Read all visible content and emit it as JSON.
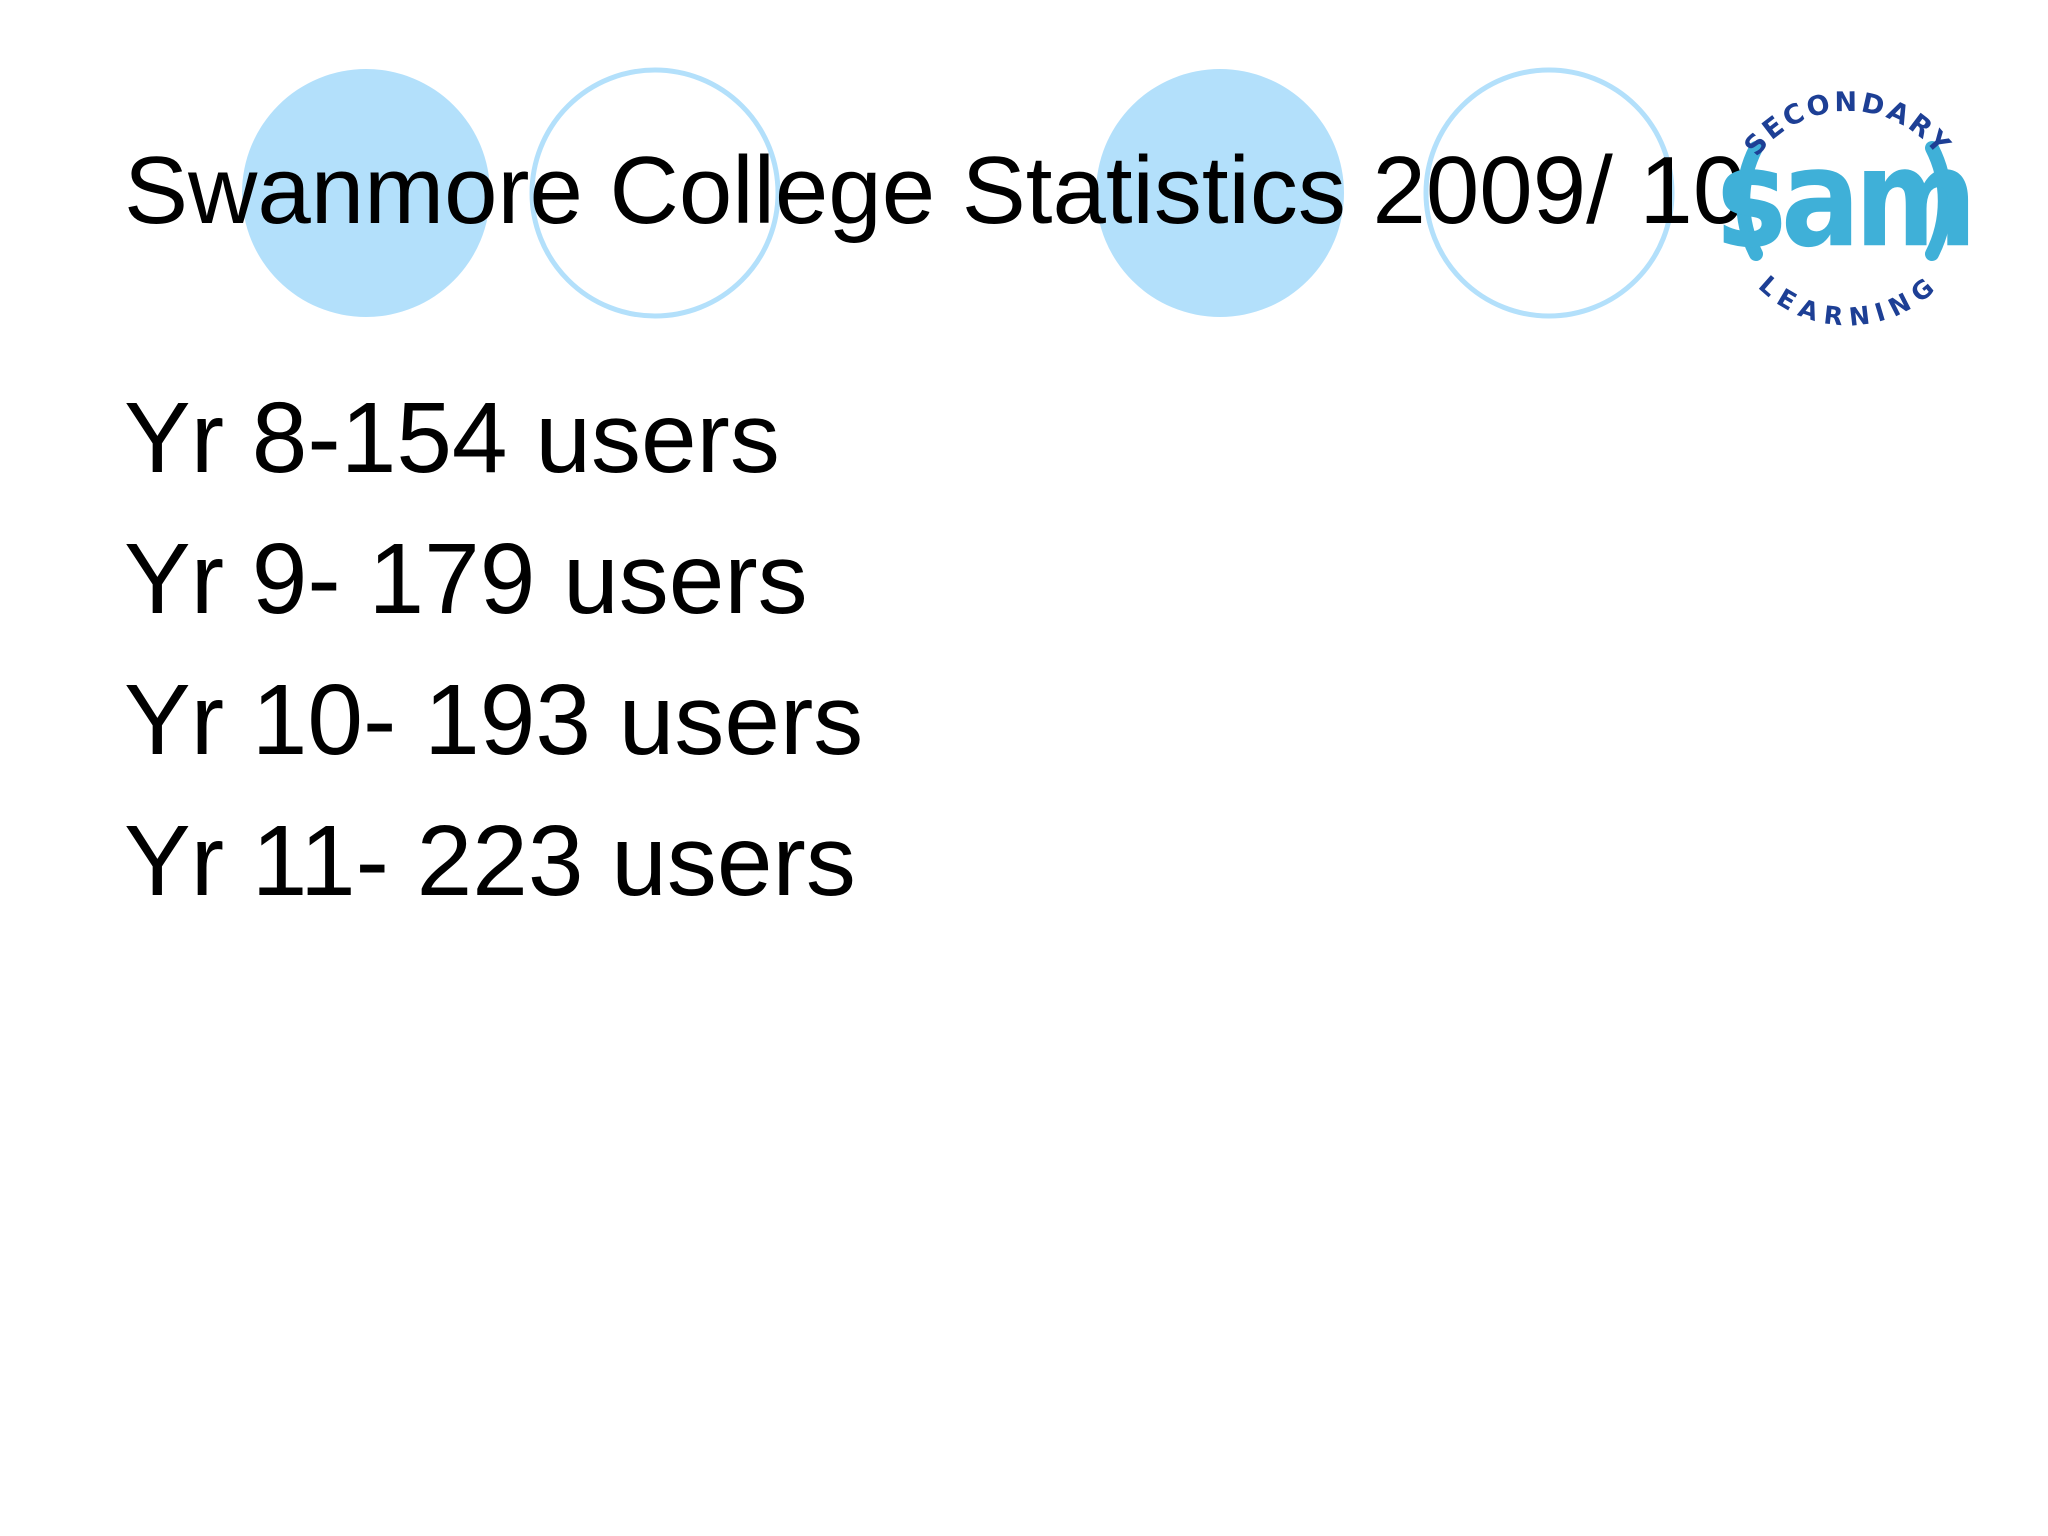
{
  "slide": {
    "title": "Swanmore College Statistics 2009/ 10",
    "items": [
      {
        "text": "Yr 8-154 users"
      },
      {
        "text": "Yr 9- 179 users"
      },
      {
        "text": "Yr 10- 193 users"
      },
      {
        "text": "Yr 11- 223 users"
      }
    ]
  },
  "logo": {
    "arc_top": "SECONDARY",
    "center": "sam",
    "arc_bottom": "LEARNING",
    "colors": {
      "ring": "#3fb0d8",
      "arc_text": "#1d3f95",
      "center_fill": "#3fb0d8"
    }
  },
  "decoration": {
    "filled_circle_color": "#b3e0fb",
    "ring_circle_color": "#b3e0fb"
  }
}
